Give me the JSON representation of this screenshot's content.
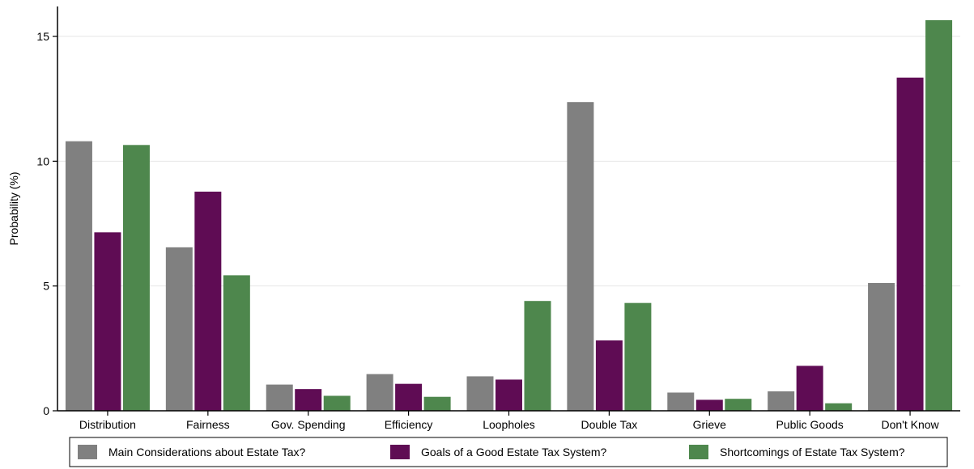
{
  "chart_data": {
    "type": "bar",
    "ylabel": "Probability (%)",
    "xlabel": "",
    "ylim": [
      0,
      16.2
    ],
    "yticks": [
      0,
      5,
      10,
      15
    ],
    "grid": true,
    "legend_placement": "bottom",
    "categories": [
      "Distribution",
      "Fairness",
      "Gov. Spending",
      "Efficiency",
      "Loopholes",
      "Double Tax",
      "Grieve",
      "Public Goods",
      "Don't Know"
    ],
    "series": [
      {
        "name": "Main Considerations about Estate Tax?",
        "color": "#808080",
        "values": [
          10.8,
          6.55,
          1.05,
          1.47,
          1.38,
          12.37,
          0.73,
          0.78,
          5.12
        ]
      },
      {
        "name": "Goals of a Good Estate Tax System?",
        "color": "#5f0c54",
        "values": [
          7.15,
          8.78,
          0.87,
          1.08,
          1.25,
          2.82,
          0.44,
          1.8,
          13.35
        ]
      },
      {
        "name": "Shortcomings of Estate Tax System?",
        "color": "#4e874d",
        "values": [
          10.65,
          5.43,
          0.6,
          0.56,
          4.4,
          4.32,
          0.48,
          0.3,
          15.65
        ]
      }
    ]
  }
}
